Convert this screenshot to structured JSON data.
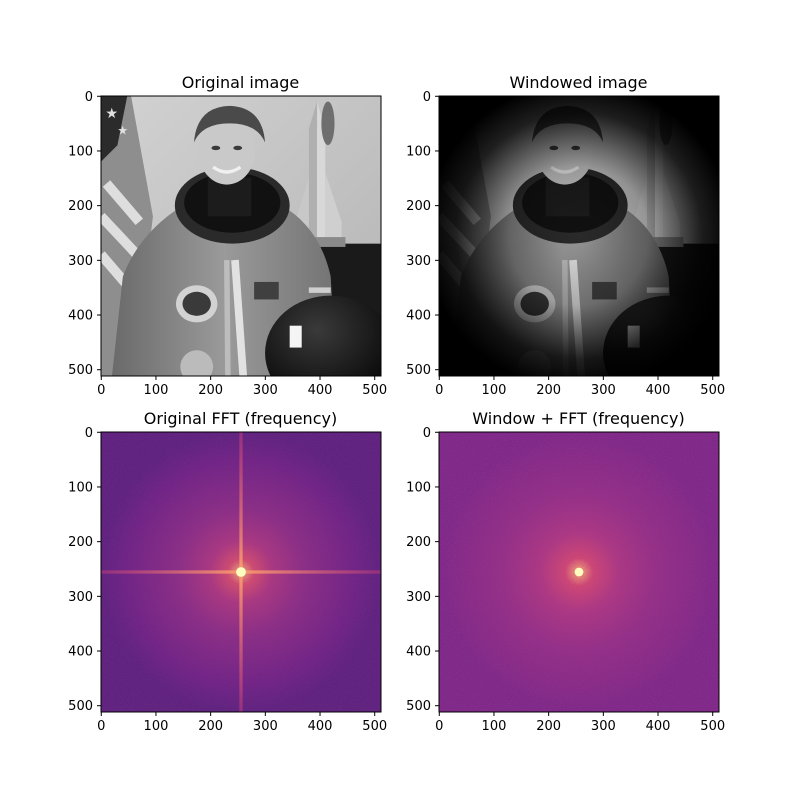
{
  "chart_data": [
    {
      "type": "heatmap",
      "title": "Original image",
      "xlabel": "",
      "ylabel": "",
      "xlim": [
        0,
        511
      ],
      "ylim": [
        511,
        0
      ],
      "xticks": [
        0,
        100,
        200,
        300,
        400,
        500
      ],
      "yticks": [
        0,
        100,
        200,
        300,
        400,
        500
      ],
      "colormap": "gray",
      "content": "grayscale photograph (512x512 pixels)"
    },
    {
      "type": "heatmap",
      "title": "Windowed image",
      "xlabel": "",
      "ylabel": "",
      "xlim": [
        0,
        511
      ],
      "ylim": [
        511,
        0
      ],
      "xticks": [
        0,
        100,
        200,
        300,
        400,
        500
      ],
      "yticks": [
        0,
        100,
        200,
        300,
        400,
        500
      ],
      "colormap": "gray",
      "content": "same photograph multiplied by a radial window, bright centre fading to black edges"
    },
    {
      "type": "heatmap",
      "title": "Original FFT (frequency)",
      "xlabel": "",
      "ylabel": "",
      "xlim": [
        0,
        511
      ],
      "ylim": [
        511,
        0
      ],
      "xticks": [
        0,
        100,
        200,
        300,
        400,
        500
      ],
      "yticks": [
        0,
        100,
        200,
        300,
        400,
        500
      ],
      "colormap": "magma",
      "peak": [
        256,
        256
      ],
      "cross_artifact": true
    },
    {
      "type": "heatmap",
      "title": "Window + FFT (frequency)",
      "xlabel": "",
      "ylabel": "",
      "xlim": [
        0,
        511
      ],
      "ylim": [
        511,
        0
      ],
      "xticks": [
        0,
        100,
        200,
        300,
        400,
        500
      ],
      "yticks": [
        0,
        100,
        200,
        300,
        400,
        500
      ],
      "colormap": "magma",
      "peak": [
        256,
        256
      ],
      "cross_artifact": false
    }
  ],
  "colors": {
    "magma_dark": "#3b0f70",
    "magma_mid": "#8c2981",
    "magma_bright": "#fe9f6d",
    "magma_peak": "#fcfdbf",
    "axis": "#000000"
  }
}
